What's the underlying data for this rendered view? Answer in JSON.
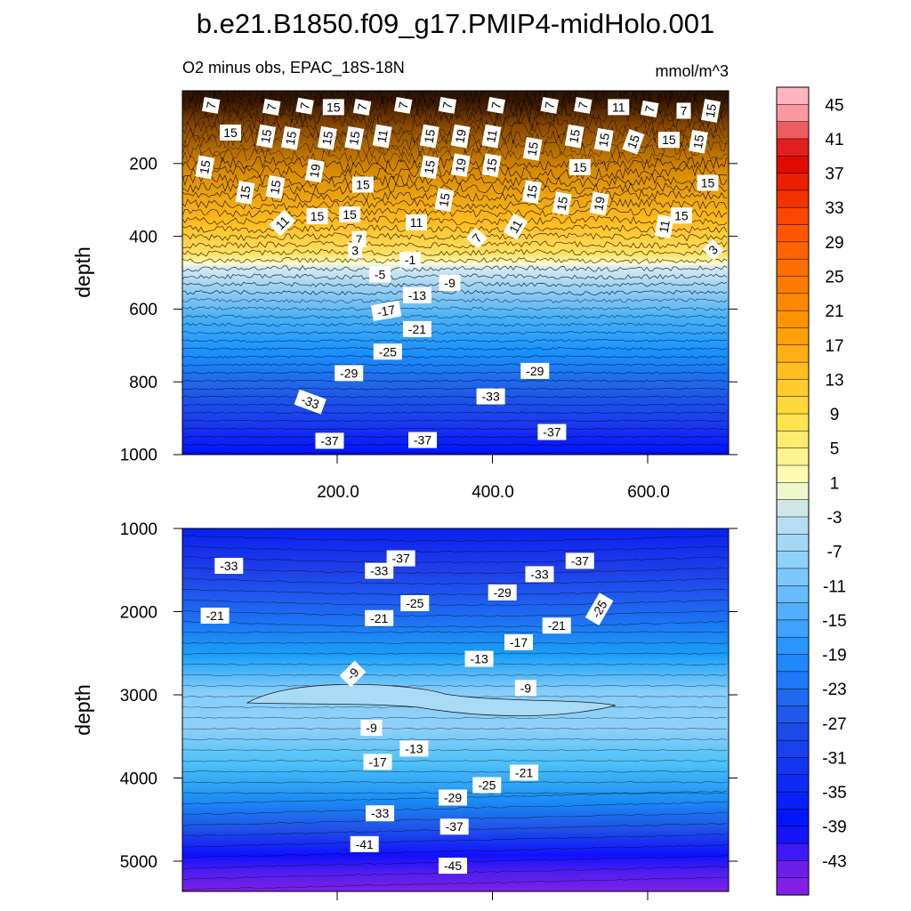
{
  "figure": {
    "title": "b.e21.B1850.f09_g17.PMIP4-midHolo.001",
    "subtitle_left": "O2 minus obs, EPAC_18S-18N",
    "subtitle_right": "mmol/m^3"
  },
  "chart_data": {
    "type": "contour",
    "title": "b.e21.B1850.f09_g17.PMIP4-midHolo.001",
    "subtitle": "O2 minus obs, EPAC_18S-18N",
    "units": "mmol/m^3",
    "levels": [
      -45,
      -43,
      -41,
      -39,
      -37,
      -35,
      -33,
      -31,
      -29,
      -27,
      -25,
      -23,
      -21,
      -19,
      -17,
      -15,
      -13,
      -11,
      -9,
      -7,
      -5,
      -3,
      -1,
      1,
      3,
      5,
      7,
      9,
      11,
      13,
      15,
      17,
      19,
      21,
      23,
      25,
      27,
      29,
      31,
      33,
      35,
      37,
      39,
      41,
      43,
      45
    ],
    "colorbar_labels": [
      "45",
      "41",
      "37",
      "33",
      "29",
      "25",
      "21",
      "17",
      "13",
      "9",
      "5",
      "1",
      "-3",
      "-7",
      "-11",
      "-15",
      "-19",
      "-23",
      "-27",
      "-31",
      "-35",
      "-39",
      "-43"
    ],
    "colors": {
      "purple": "#8020e6",
      "deep_blue": "#0010ff",
      "mid_blue": "#1e90ff",
      "light_blue": "#87cefa",
      "pale_blue": "#bfe0f2",
      "pale_yellow": "#ffffc0",
      "yellow": "#ffe040",
      "orange": "#ff9900",
      "red": "#dd0000",
      "pink": "#ffb6c1"
    },
    "panels": [
      {
        "name": "upper",
        "ylabel": "depth",
        "ylim": [
          0,
          1000
        ],
        "xlim": [
          0,
          705
        ],
        "ytick_labels": [
          "200",
          "400",
          "600",
          "800",
          "1000"
        ],
        "xtick_labels": [
          "200.0",
          "400.0",
          "600.0"
        ],
        "contour_labels": [
          {
            "x": 37,
            "y": 40,
            "text": "7",
            "r": -80
          },
          {
            "x": 115,
            "y": 45,
            "text": "7",
            "r": -80
          },
          {
            "x": 158,
            "y": 42,
            "text": "7",
            "r": -80
          },
          {
            "x": 195,
            "y": 45,
            "text": "15",
            "r": 0
          },
          {
            "x": 232,
            "y": 45,
            "text": "7",
            "r": -80
          },
          {
            "x": 285,
            "y": 40,
            "text": "7",
            "r": -80
          },
          {
            "x": 342,
            "y": 40,
            "text": "7",
            "r": -80
          },
          {
            "x": 405,
            "y": 40,
            "text": "7",
            "r": -80
          },
          {
            "x": 474,
            "y": 40,
            "text": "7",
            "r": -80
          },
          {
            "x": 517,
            "y": 40,
            "text": "7",
            "r": -80
          },
          {
            "x": 563,
            "y": 45,
            "text": "11",
            "r": 0
          },
          {
            "x": 603,
            "y": 50,
            "text": "7",
            "r": -80
          },
          {
            "x": 647,
            "y": 55,
            "text": "7",
            "r": 0
          },
          {
            "x": 682,
            "y": 55,
            "text": "15",
            "r": -80
          },
          {
            "x": 62,
            "y": 115,
            "text": "15",
            "r": 0
          },
          {
            "x": 108,
            "y": 125,
            "text": "15",
            "r": -80
          },
          {
            "x": 140,
            "y": 130,
            "text": "15",
            "r": -80
          },
          {
            "x": 187,
            "y": 130,
            "text": "15",
            "r": -80
          },
          {
            "x": 222,
            "y": 130,
            "text": "15",
            "r": -80
          },
          {
            "x": 258,
            "y": 125,
            "text": "11",
            "r": -80
          },
          {
            "x": 319,
            "y": 125,
            "text": "15",
            "r": -80
          },
          {
            "x": 359,
            "y": 125,
            "text": "19",
            "r": -80
          },
          {
            "x": 399,
            "y": 125,
            "text": "11",
            "r": -80
          },
          {
            "x": 452,
            "y": 160,
            "text": "15",
            "r": -80
          },
          {
            "x": 506,
            "y": 125,
            "text": "15",
            "r": -80
          },
          {
            "x": 544,
            "y": 135,
            "text": "15",
            "r": -80
          },
          {
            "x": 582,
            "y": 140,
            "text": "15",
            "r": -70
          },
          {
            "x": 628,
            "y": 135,
            "text": "15",
            "r": 0
          },
          {
            "x": 666,
            "y": 140,
            "text": "15",
            "r": -80
          },
          {
            "x": 29,
            "y": 210,
            "text": "15",
            "r": -80
          },
          {
            "x": 171,
            "y": 220,
            "text": "19",
            "r": -80
          },
          {
            "x": 319,
            "y": 210,
            "text": "15",
            "r": -80
          },
          {
            "x": 359,
            "y": 205,
            "text": "19",
            "r": -80
          },
          {
            "x": 399,
            "y": 205,
            "text": "15",
            "r": -80
          },
          {
            "x": 513,
            "y": 210,
            "text": "15",
            "r": 0
          },
          {
            "x": 81,
            "y": 280,
            "text": "15",
            "r": -80
          },
          {
            "x": 120,
            "y": 265,
            "text": "15",
            "r": -80
          },
          {
            "x": 233,
            "y": 258,
            "text": "15",
            "r": 0
          },
          {
            "x": 338,
            "y": 300,
            "text": "15",
            "r": -80
          },
          {
            "x": 451,
            "y": 278,
            "text": "15",
            "r": -80
          },
          {
            "x": 490,
            "y": 310,
            "text": "15",
            "r": -80
          },
          {
            "x": 538,
            "y": 310,
            "text": "19",
            "r": -80
          },
          {
            "x": 678,
            "y": 253,
            "text": "15",
            "r": 0
          },
          {
            "x": 129,
            "y": 363,
            "text": "11",
            "r": -45
          },
          {
            "x": 174,
            "y": 345,
            "text": "15",
            "r": 0
          },
          {
            "x": 216,
            "y": 340,
            "text": "15",
            "r": 0
          },
          {
            "x": 302,
            "y": 362,
            "text": "11",
            "r": 0
          },
          {
            "x": 380,
            "y": 405,
            "text": "7",
            "r": -50
          },
          {
            "x": 430,
            "y": 373,
            "text": "11",
            "r": -60
          },
          {
            "x": 622,
            "y": 373,
            "text": "11",
            "r": -80
          },
          {
            "x": 644,
            "y": 343,
            "text": "15",
            "r": 0
          },
          {
            "x": 228,
            "y": 408,
            "text": "7",
            "r": 0
          },
          {
            "x": 223,
            "y": 439,
            "text": "3",
            "r": 0
          },
          {
            "x": 685,
            "y": 437,
            "text": "3",
            "r": -45
          },
          {
            "x": 294,
            "y": 464,
            "text": "-1",
            "r": 0
          },
          {
            "x": 255,
            "y": 505,
            "text": "-5",
            "r": 0
          },
          {
            "x": 345,
            "y": 528,
            "text": "-9",
            "r": 0
          },
          {
            "x": 303,
            "y": 562,
            "text": "-13",
            "r": 0
          },
          {
            "x": 263,
            "y": 605,
            "text": "-17",
            "r": -10
          },
          {
            "x": 303,
            "y": 655,
            "text": "-21",
            "r": 0
          },
          {
            "x": 265,
            "y": 717,
            "text": "-25",
            "r": 0
          },
          {
            "x": 215,
            "y": 776,
            "text": "-29",
            "r": 0
          },
          {
            "x": 455,
            "y": 770,
            "text": "-29",
            "r": 0
          },
          {
            "x": 165,
            "y": 855,
            "text": "-33",
            "r": 20
          },
          {
            "x": 398,
            "y": 840,
            "text": "-33",
            "r": 0
          },
          {
            "x": 190,
            "y": 962,
            "text": "-37",
            "r": 0
          },
          {
            "x": 310,
            "y": 960,
            "text": "-37",
            "r": 0
          },
          {
            "x": 477,
            "y": 938,
            "text": "-37",
            "r": 0
          }
        ]
      },
      {
        "name": "lower",
        "ylabel": "depth",
        "ylim": [
          1000,
          5370
        ],
        "xlim": [
          0,
          705
        ],
        "ytick_labels": [
          "1000",
          "2000",
          "3000",
          "4000",
          "5000"
        ],
        "contour_labels": [
          {
            "x": 60,
            "y": 1450,
            "text": "-33",
            "r": 0
          },
          {
            "x": 282,
            "y": 1360,
            "text": "-37",
            "r": 0
          },
          {
            "x": 254,
            "y": 1510,
            "text": "-33",
            "r": 0
          },
          {
            "x": 513,
            "y": 1390,
            "text": "-37",
            "r": 0
          },
          {
            "x": 461,
            "y": 1550,
            "text": "-33",
            "r": 0
          },
          {
            "x": 42,
            "y": 2050,
            "text": "-21",
            "r": 0
          },
          {
            "x": 254,
            "y": 2080,
            "text": "-21",
            "r": 0
          },
          {
            "x": 300,
            "y": 1900,
            "text": "-25",
            "r": 0
          },
          {
            "x": 413,
            "y": 1770,
            "text": "-29",
            "r": 0
          },
          {
            "x": 483,
            "y": 2170,
            "text": "-21",
            "r": 0
          },
          {
            "x": 538,
            "y": 1970,
            "text": "-25",
            "r": -60
          },
          {
            "x": 434,
            "y": 2370,
            "text": "-17",
            "r": 0
          },
          {
            "x": 383,
            "y": 2570,
            "text": "-13",
            "r": 0
          },
          {
            "x": 220,
            "y": 2750,
            "text": "-9",
            "r": -45
          },
          {
            "x": 443,
            "y": 2920,
            "text": "-9",
            "r": 0
          },
          {
            "x": 244,
            "y": 3400,
            "text": "-9",
            "r": 0
          },
          {
            "x": 299,
            "y": 3650,
            "text": "-13",
            "r": 0
          },
          {
            "x": 252,
            "y": 3810,
            "text": "-17",
            "r": 0
          },
          {
            "x": 441,
            "y": 3940,
            "text": "-21",
            "r": 0
          },
          {
            "x": 393,
            "y": 4090,
            "text": "-25",
            "r": 0
          },
          {
            "x": 349,
            "y": 4240,
            "text": "-29",
            "r": 0
          },
          {
            "x": 255,
            "y": 4430,
            "text": "-33",
            "r": 0
          },
          {
            "x": 351,
            "y": 4590,
            "text": "-37",
            "r": 0
          },
          {
            "x": 235,
            "y": 4800,
            "text": "-41",
            "r": 0
          },
          {
            "x": 349,
            "y": 5060,
            "text": "-45",
            "r": 0
          }
        ]
      }
    ]
  }
}
